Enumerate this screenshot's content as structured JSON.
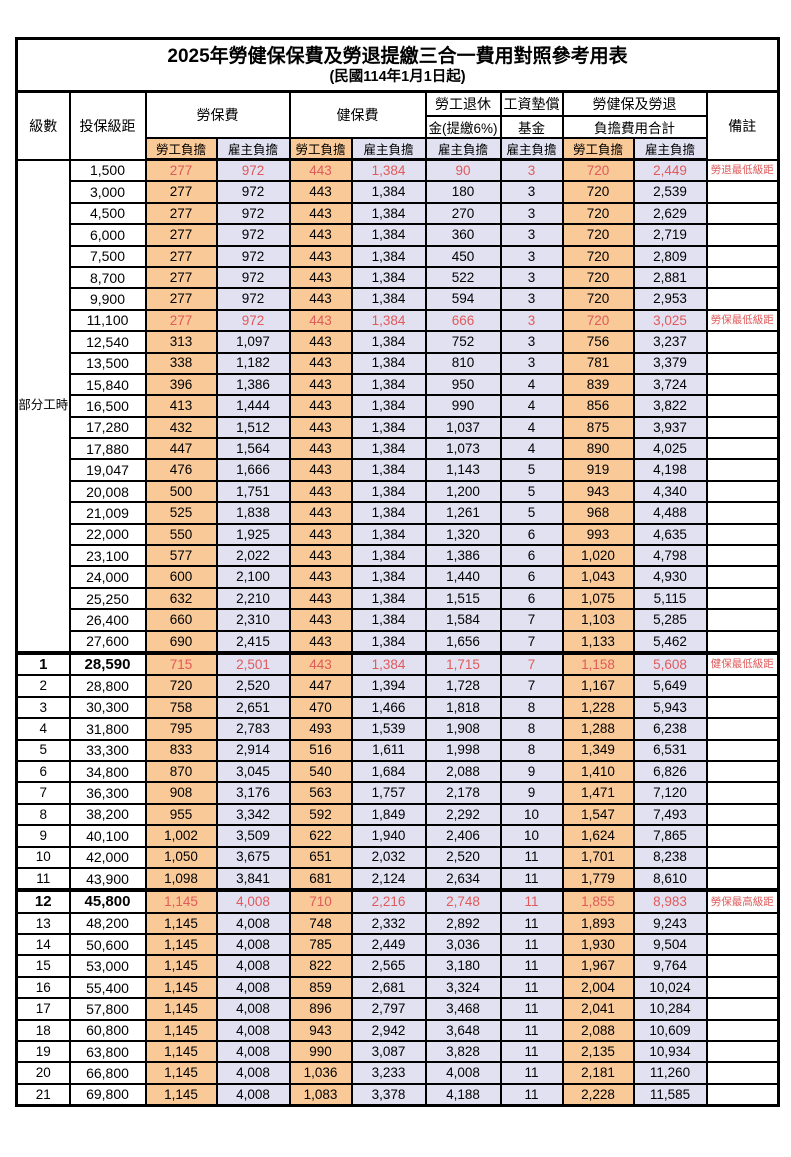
{
  "page": {
    "title": "2025年勞健保保費及勞退提繳三合一費用對照參考用表",
    "subtitle": "(民國114年1月1日起)"
  },
  "header": {
    "level": "級數",
    "bracket": "投保級距",
    "labor_insurance": "勞保費",
    "health_insurance": "健保費",
    "pension": {
      "line1": "勞工退休",
      "line2": "金(提繳6%)"
    },
    "wage_arrears_fund": {
      "line1": "工資墊償",
      "line2": "基金"
    },
    "combined_total": {
      "line1": "勞健保及勞退",
      "line2": "負擔費用合計"
    },
    "note": "備註",
    "employee_label": "勞工負擔",
    "employer_label": "雇主負擔"
  },
  "part_time": {
    "label": "部分工時",
    "row_count": 23
  },
  "colors": {
    "employee_bg": "#F9C998",
    "employer_bg": "#E2E1F2",
    "highlight_red": "#E05A5A"
  },
  "value_columns": [
    "labor-employee",
    "labor-employer",
    "health-employee",
    "health-employer",
    "pension-employer",
    "wage-fund-employer",
    "total-employee",
    "total-employer"
  ],
  "rows": [
    {
      "level": "",
      "bracket": "1,500",
      "v": [
        "277",
        "972",
        "443",
        "1,384",
        "90",
        "3",
        "720",
        "2,449"
      ],
      "note": "勞退最低級距",
      "red": true,
      "bold": false,
      "sep": false
    },
    {
      "level": "",
      "bracket": "3,000",
      "v": [
        "277",
        "972",
        "443",
        "1,384",
        "180",
        "3",
        "720",
        "2,539"
      ],
      "note": "",
      "red": false,
      "bold": false,
      "sep": false
    },
    {
      "level": "",
      "bracket": "4,500",
      "v": [
        "277",
        "972",
        "443",
        "1,384",
        "270",
        "3",
        "720",
        "2,629"
      ],
      "note": "",
      "red": false,
      "bold": false,
      "sep": false
    },
    {
      "level": "",
      "bracket": "6,000",
      "v": [
        "277",
        "972",
        "443",
        "1,384",
        "360",
        "3",
        "720",
        "2,719"
      ],
      "note": "",
      "red": false,
      "bold": false,
      "sep": false
    },
    {
      "level": "",
      "bracket": "7,500",
      "v": [
        "277",
        "972",
        "443",
        "1,384",
        "450",
        "3",
        "720",
        "2,809"
      ],
      "note": "",
      "red": false,
      "bold": false,
      "sep": false
    },
    {
      "level": "",
      "bracket": "8,700",
      "v": [
        "277",
        "972",
        "443",
        "1,384",
        "522",
        "3",
        "720",
        "2,881"
      ],
      "note": "",
      "red": false,
      "bold": false,
      "sep": false
    },
    {
      "level": "",
      "bracket": "9,900",
      "v": [
        "277",
        "972",
        "443",
        "1,384",
        "594",
        "3",
        "720",
        "2,953"
      ],
      "note": "",
      "red": false,
      "bold": false,
      "sep": false
    },
    {
      "level": "",
      "bracket": "11,100",
      "v": [
        "277",
        "972",
        "443",
        "1,384",
        "666",
        "3",
        "720",
        "3,025"
      ],
      "note": "勞保最低級距",
      "red": true,
      "bold": false,
      "sep": false
    },
    {
      "level": "",
      "bracket": "12,540",
      "v": [
        "313",
        "1,097",
        "443",
        "1,384",
        "752",
        "3",
        "756",
        "3,237"
      ],
      "note": "",
      "red": false,
      "bold": false,
      "sep": false
    },
    {
      "level": "",
      "bracket": "13,500",
      "v": [
        "338",
        "1,182",
        "443",
        "1,384",
        "810",
        "3",
        "781",
        "3,379"
      ],
      "note": "",
      "red": false,
      "bold": false,
      "sep": false
    },
    {
      "level": "",
      "bracket": "15,840",
      "v": [
        "396",
        "1,386",
        "443",
        "1,384",
        "950",
        "4",
        "839",
        "3,724"
      ],
      "note": "",
      "red": false,
      "bold": false,
      "sep": false
    },
    {
      "level": "",
      "bracket": "16,500",
      "v": [
        "413",
        "1,444",
        "443",
        "1,384",
        "990",
        "4",
        "856",
        "3,822"
      ],
      "note": "",
      "red": false,
      "bold": false,
      "sep": false
    },
    {
      "level": "",
      "bracket": "17,280",
      "v": [
        "432",
        "1,512",
        "443",
        "1,384",
        "1,037",
        "4",
        "875",
        "3,937"
      ],
      "note": "",
      "red": false,
      "bold": false,
      "sep": false
    },
    {
      "level": "",
      "bracket": "17,880",
      "v": [
        "447",
        "1,564",
        "443",
        "1,384",
        "1,073",
        "4",
        "890",
        "4,025"
      ],
      "note": "",
      "red": false,
      "bold": false,
      "sep": false
    },
    {
      "level": "",
      "bracket": "19,047",
      "v": [
        "476",
        "1,666",
        "443",
        "1,384",
        "1,143",
        "5",
        "919",
        "4,198"
      ],
      "note": "",
      "red": false,
      "bold": false,
      "sep": false
    },
    {
      "level": "",
      "bracket": "20,008",
      "v": [
        "500",
        "1,751",
        "443",
        "1,384",
        "1,200",
        "5",
        "943",
        "4,340"
      ],
      "note": "",
      "red": false,
      "bold": false,
      "sep": false
    },
    {
      "level": "",
      "bracket": "21,009",
      "v": [
        "525",
        "1,838",
        "443",
        "1,384",
        "1,261",
        "5",
        "968",
        "4,488"
      ],
      "note": "",
      "red": false,
      "bold": false,
      "sep": false
    },
    {
      "level": "",
      "bracket": "22,000",
      "v": [
        "550",
        "1,925",
        "443",
        "1,384",
        "1,320",
        "6",
        "993",
        "4,635"
      ],
      "note": "",
      "red": false,
      "bold": false,
      "sep": false
    },
    {
      "level": "",
      "bracket": "23,100",
      "v": [
        "577",
        "2,022",
        "443",
        "1,384",
        "1,386",
        "6",
        "1,020",
        "4,798"
      ],
      "note": "",
      "red": false,
      "bold": false,
      "sep": false
    },
    {
      "level": "",
      "bracket": "24,000",
      "v": [
        "600",
        "2,100",
        "443",
        "1,384",
        "1,440",
        "6",
        "1,043",
        "4,930"
      ],
      "note": "",
      "red": false,
      "bold": false,
      "sep": false
    },
    {
      "level": "",
      "bracket": "25,250",
      "v": [
        "632",
        "2,210",
        "443",
        "1,384",
        "1,515",
        "6",
        "1,075",
        "5,115"
      ],
      "note": "",
      "red": false,
      "bold": false,
      "sep": false
    },
    {
      "level": "",
      "bracket": "26,400",
      "v": [
        "660",
        "2,310",
        "443",
        "1,384",
        "1,584",
        "7",
        "1,103",
        "5,285"
      ],
      "note": "",
      "red": false,
      "bold": false,
      "sep": false
    },
    {
      "level": "",
      "bracket": "27,600",
      "v": [
        "690",
        "2,415",
        "443",
        "1,384",
        "1,656",
        "7",
        "1,133",
        "5,462"
      ],
      "note": "",
      "red": false,
      "bold": false,
      "sep": false
    },
    {
      "level": "1",
      "bracket": "28,590",
      "v": [
        "715",
        "2,501",
        "443",
        "1,384",
        "1,715",
        "7",
        "1,158",
        "5,608"
      ],
      "note": "健保最低級距",
      "red": true,
      "bold": true,
      "sep": true
    },
    {
      "level": "2",
      "bracket": "28,800",
      "v": [
        "720",
        "2,520",
        "447",
        "1,394",
        "1,728",
        "7",
        "1,167",
        "5,649"
      ],
      "note": "",
      "red": false,
      "bold": false,
      "sep": false
    },
    {
      "level": "3",
      "bracket": "30,300",
      "v": [
        "758",
        "2,651",
        "470",
        "1,466",
        "1,818",
        "8",
        "1,228",
        "5,943"
      ],
      "note": "",
      "red": false,
      "bold": false,
      "sep": false
    },
    {
      "level": "4",
      "bracket": "31,800",
      "v": [
        "795",
        "2,783",
        "493",
        "1,539",
        "1,908",
        "8",
        "1,288",
        "6,238"
      ],
      "note": "",
      "red": false,
      "bold": false,
      "sep": false
    },
    {
      "level": "5",
      "bracket": "33,300",
      "v": [
        "833",
        "2,914",
        "516",
        "1,611",
        "1,998",
        "8",
        "1,349",
        "6,531"
      ],
      "note": "",
      "red": false,
      "bold": false,
      "sep": false
    },
    {
      "level": "6",
      "bracket": "34,800",
      "v": [
        "870",
        "3,045",
        "540",
        "1,684",
        "2,088",
        "9",
        "1,410",
        "6,826"
      ],
      "note": "",
      "red": false,
      "bold": false,
      "sep": false
    },
    {
      "level": "7",
      "bracket": "36,300",
      "v": [
        "908",
        "3,176",
        "563",
        "1,757",
        "2,178",
        "9",
        "1,471",
        "7,120"
      ],
      "note": "",
      "red": false,
      "bold": false,
      "sep": false
    },
    {
      "level": "8",
      "bracket": "38,200",
      "v": [
        "955",
        "3,342",
        "592",
        "1,849",
        "2,292",
        "10",
        "1,547",
        "7,493"
      ],
      "note": "",
      "red": false,
      "bold": false,
      "sep": false
    },
    {
      "level": "9",
      "bracket": "40,100",
      "v": [
        "1,002",
        "3,509",
        "622",
        "1,940",
        "2,406",
        "10",
        "1,624",
        "7,865"
      ],
      "note": "",
      "red": false,
      "bold": false,
      "sep": false
    },
    {
      "level": "10",
      "bracket": "42,000",
      "v": [
        "1,050",
        "3,675",
        "651",
        "2,032",
        "2,520",
        "11",
        "1,701",
        "8,238"
      ],
      "note": "",
      "red": false,
      "bold": false,
      "sep": false
    },
    {
      "level": "11",
      "bracket": "43,900",
      "v": [
        "1,098",
        "3,841",
        "681",
        "2,124",
        "2,634",
        "11",
        "1,779",
        "8,610"
      ],
      "note": "",
      "red": false,
      "bold": false,
      "sep": false
    },
    {
      "level": "12",
      "bracket": "45,800",
      "v": [
        "1,145",
        "4,008",
        "710",
        "2,216",
        "2,748",
        "11",
        "1,855",
        "8,983"
      ],
      "note": "勞保最高級距",
      "red": true,
      "bold": true,
      "sep": true
    },
    {
      "level": "13",
      "bracket": "48,200",
      "v": [
        "1,145",
        "4,008",
        "748",
        "2,332",
        "2,892",
        "11",
        "1,893",
        "9,243"
      ],
      "note": "",
      "red": false,
      "bold": false,
      "sep": false
    },
    {
      "level": "14",
      "bracket": "50,600",
      "v": [
        "1,145",
        "4,008",
        "785",
        "2,449",
        "3,036",
        "11",
        "1,930",
        "9,504"
      ],
      "note": "",
      "red": false,
      "bold": false,
      "sep": false
    },
    {
      "level": "15",
      "bracket": "53,000",
      "v": [
        "1,145",
        "4,008",
        "822",
        "2,565",
        "3,180",
        "11",
        "1,967",
        "9,764"
      ],
      "note": "",
      "red": false,
      "bold": false,
      "sep": false
    },
    {
      "level": "16",
      "bracket": "55,400",
      "v": [
        "1,145",
        "4,008",
        "859",
        "2,681",
        "3,324",
        "11",
        "2,004",
        "10,024"
      ],
      "note": "",
      "red": false,
      "bold": false,
      "sep": false
    },
    {
      "level": "17",
      "bracket": "57,800",
      "v": [
        "1,145",
        "4,008",
        "896",
        "2,797",
        "3,468",
        "11",
        "2,041",
        "10,284"
      ],
      "note": "",
      "red": false,
      "bold": false,
      "sep": false
    },
    {
      "level": "18",
      "bracket": "60,800",
      "v": [
        "1,145",
        "4,008",
        "943",
        "2,942",
        "3,648",
        "11",
        "2,088",
        "10,609"
      ],
      "note": "",
      "red": false,
      "bold": false,
      "sep": false
    },
    {
      "level": "19",
      "bracket": "63,800",
      "v": [
        "1,145",
        "4,008",
        "990",
        "3,087",
        "3,828",
        "11",
        "2,135",
        "10,934"
      ],
      "note": "",
      "red": false,
      "bold": false,
      "sep": false
    },
    {
      "level": "20",
      "bracket": "66,800",
      "v": [
        "1,145",
        "4,008",
        "1,036",
        "3,233",
        "4,008",
        "11",
        "2,181",
        "11,260"
      ],
      "note": "",
      "red": false,
      "bold": false,
      "sep": false
    },
    {
      "level": "21",
      "bracket": "69,800",
      "v": [
        "1,145",
        "4,008",
        "1,083",
        "3,378",
        "4,188",
        "11",
        "2,228",
        "11,585"
      ],
      "note": "",
      "red": false,
      "bold": false,
      "sep": false
    }
  ]
}
